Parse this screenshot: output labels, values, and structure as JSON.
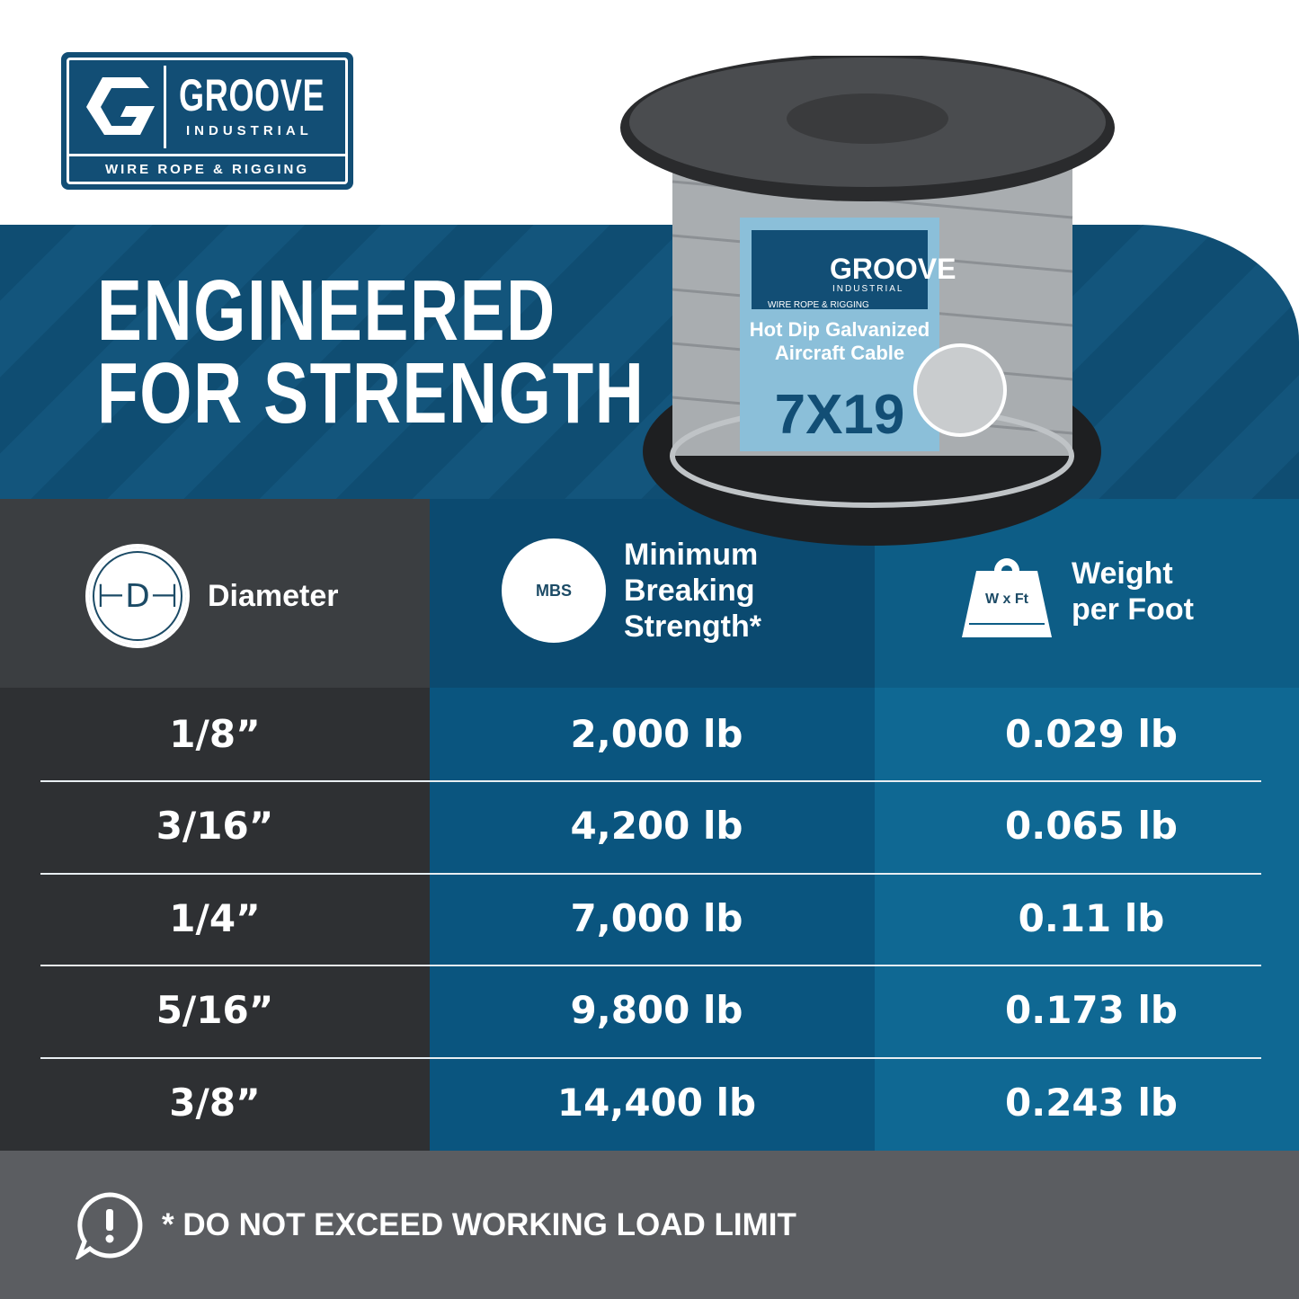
{
  "logo": {
    "brand": "GROOVE",
    "sub": "INDUSTRIAL",
    "tagline": "WIRE ROPE & RIGGING"
  },
  "headline": {
    "line1": "ENGINEERED",
    "line2": "FOR STRENGTH"
  },
  "product_label": {
    "brand": "GROOVE",
    "sub": "INDUSTRIAL",
    "tagline": "WIRE ROPE & RIGGING",
    "name_line1": "Hot Dip Galvanized",
    "name_line2": "Aircraft Cable",
    "construction": "7X19"
  },
  "table": {
    "headers": [
      {
        "label": "Diameter",
        "icon": "diameter-icon",
        "icon_text": "D"
      },
      {
        "label": "Minimum Breaking Strength*",
        "lines": [
          "Minimum",
          "Breaking",
          "Strength*"
        ],
        "icon": "mbs-icon",
        "icon_text": "MBS"
      },
      {
        "label": "Weight per Foot",
        "lines": [
          "Weight",
          "per Foot"
        ],
        "icon": "weight-icon",
        "icon_text": "W x Ft"
      }
    ],
    "rows": [
      [
        "1/8”",
        "2,000 lb",
        "0.029 lb"
      ],
      [
        "3/16”",
        "4,200 lb",
        "0.065 lb"
      ],
      [
        "1/4”",
        "7,000 lb",
        "0.11 lb"
      ],
      [
        "5/16”",
        "9,800 lb",
        "0.173 lb"
      ],
      [
        "3/8”",
        "14,400 lb",
        "0.243 lb"
      ]
    ]
  },
  "footer": {
    "note": "* DO NOT EXCEED WORKING LOAD LIMIT",
    "icon": "alert-speech-icon"
  },
  "colors": {
    "brand_blue": "#124e75",
    "dark_gray": "#2e3033",
    "footer_gray": "#5b5d61"
  }
}
